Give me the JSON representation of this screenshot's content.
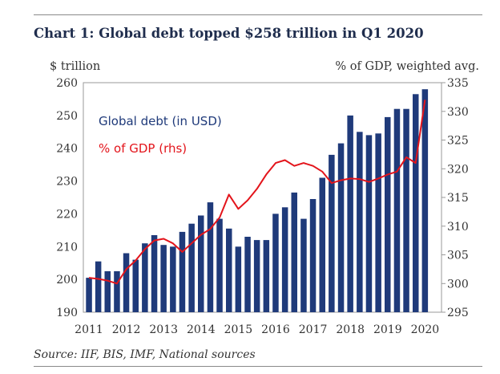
{
  "chart_data": {
    "type": "bar",
    "title": "Chart 1: Global debt topped $258 trillion in Q1 2020",
    "ylabel_left": "$ trillion",
    "ylabel_right": "% of GDP, weighted avg.",
    "source": "Source: IIF, BIS, IMF, National sources",
    "x_tick_labels": [
      "2011",
      "2012",
      "2013",
      "2014",
      "2015",
      "2016",
      "2017",
      "2018",
      "2019",
      "2020"
    ],
    "x_range": [
      2011,
      2020.25
    ],
    "ylim_left": [
      190,
      260
    ],
    "ylim_right": [
      295,
      335
    ],
    "y_ticks_left": [
      190,
      200,
      210,
      220,
      230,
      240,
      250,
      260
    ],
    "y_ticks_right": [
      295,
      300,
      305,
      310,
      315,
      320,
      325,
      330,
      335
    ],
    "legend_position": "top-left inside",
    "series": [
      {
        "name": "Global debt (in USD)",
        "axis": "left",
        "color": "#1f3a7a",
        "x": [
          2011,
          2011.25,
          2011.5,
          2011.75,
          2012,
          2012.25,
          2012.5,
          2012.75,
          2013,
          2013.25,
          2013.5,
          2013.75,
          2014,
          2014.25,
          2014.5,
          2014.75,
          2015,
          2015.25,
          2015.5,
          2015.75,
          2016,
          2016.25,
          2016.5,
          2016.75,
          2017,
          2017.25,
          2017.5,
          2017.75,
          2018,
          2018.25,
          2018.5,
          2018.75,
          2019,
          2019.25,
          2019.5,
          2019.75,
          2020
        ],
        "values": [
          200.5,
          205.5,
          202.5,
          202.5,
          208,
          206,
          211,
          213.5,
          210.5,
          210,
          214.5,
          217,
          219.5,
          223.5,
          218.5,
          215.5,
          210,
          213,
          212,
          212,
          220,
          222,
          226.5,
          218.5,
          224.5,
          231,
          238,
          241.5,
          250,
          245,
          244,
          244.5,
          249.5,
          252,
          252,
          256.5,
          258
        ]
      },
      {
        "name": "% of GDP (rhs)",
        "axis": "right",
        "color": "#e3141b",
        "x": [
          2011,
          2011.25,
          2011.5,
          2011.75,
          2012,
          2012.25,
          2012.5,
          2012.75,
          2013,
          2013.25,
          2013.5,
          2013.75,
          2014,
          2014.25,
          2014.5,
          2014.75,
          2015,
          2015.25,
          2015.5,
          2015.75,
          2016,
          2016.25,
          2016.5,
          2016.75,
          2017,
          2017.25,
          2017.5,
          2017.75,
          2018,
          2018.25,
          2018.5,
          2018.75,
          2019,
          2019.25,
          2019.5,
          2019.75,
          2020
        ],
        "values": [
          301,
          300.8,
          300.5,
          300,
          302.5,
          304,
          306,
          307.5,
          307.8,
          307,
          305.5,
          307,
          308.5,
          309.5,
          311.5,
          315.5,
          313,
          314.5,
          316.5,
          319,
          321,
          321.5,
          320.5,
          321,
          320.5,
          319.5,
          317.5,
          318,
          318.3,
          318.2,
          317.7,
          318.3,
          319,
          319.5,
          322,
          321,
          332
        ]
      }
    ]
  }
}
